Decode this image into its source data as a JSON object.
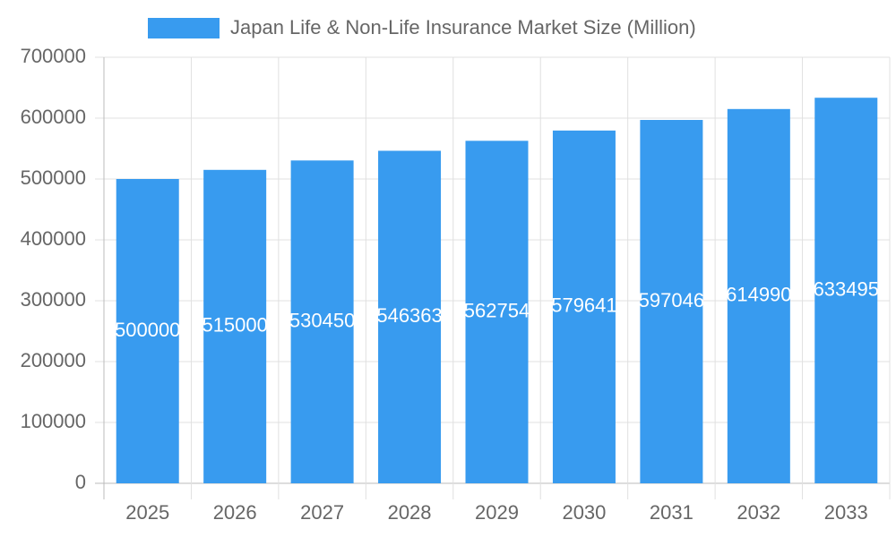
{
  "chart_data": {
    "type": "bar",
    "categories": [
      "2025",
      "2026",
      "2027",
      "2028",
      "2029",
      "2030",
      "2031",
      "2032",
      "2033"
    ],
    "series": [
      {
        "name": "Japan Life & Non-Life Insurance Market Size (Million)",
        "color": "#389bef",
        "values": [
          500000,
          515000,
          530450,
          546363,
          562754,
          579641,
          597046,
          614990,
          633495
        ]
      }
    ],
    "ylim": [
      0,
      700000
    ],
    "yticks": [
      0,
      100000,
      200000,
      300000,
      400000,
      500000,
      600000,
      700000
    ],
    "grid": true,
    "legend": "top"
  }
}
